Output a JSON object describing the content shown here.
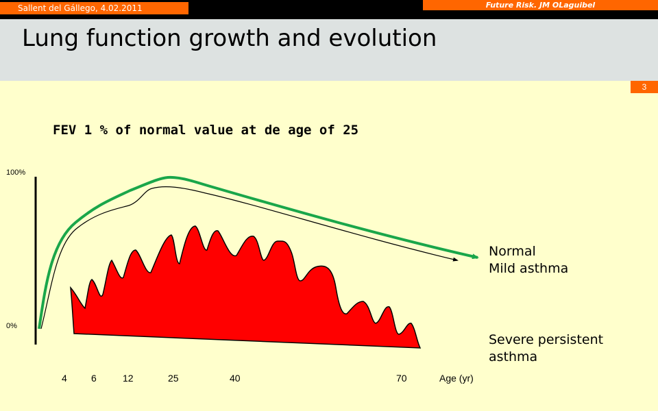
{
  "header": {
    "event": "Sallent del Gállego,  4.02.2011",
    "author": "Future Risk. JM OLaguibel",
    "page_number": "3"
  },
  "slide": {
    "title": "Lung function growth and evolution"
  },
  "chart_data": {
    "type": "area",
    "title": "FEV 1 % of normal value at de age of 25",
    "ylabel_top": "100%",
    "ylabel_bottom": "0%",
    "xlabel": "Age (yr)",
    "x_ticks": [
      "4",
      "6",
      "12",
      "25",
      "40",
      "70"
    ],
    "series": [
      {
        "name": "Normal",
        "color": "#1aa64a"
      },
      {
        "name": "Mild asthma",
        "color": "#000000"
      },
      {
        "name": "Severe persistent asthma",
        "color": "#ff0000"
      }
    ]
  }
}
